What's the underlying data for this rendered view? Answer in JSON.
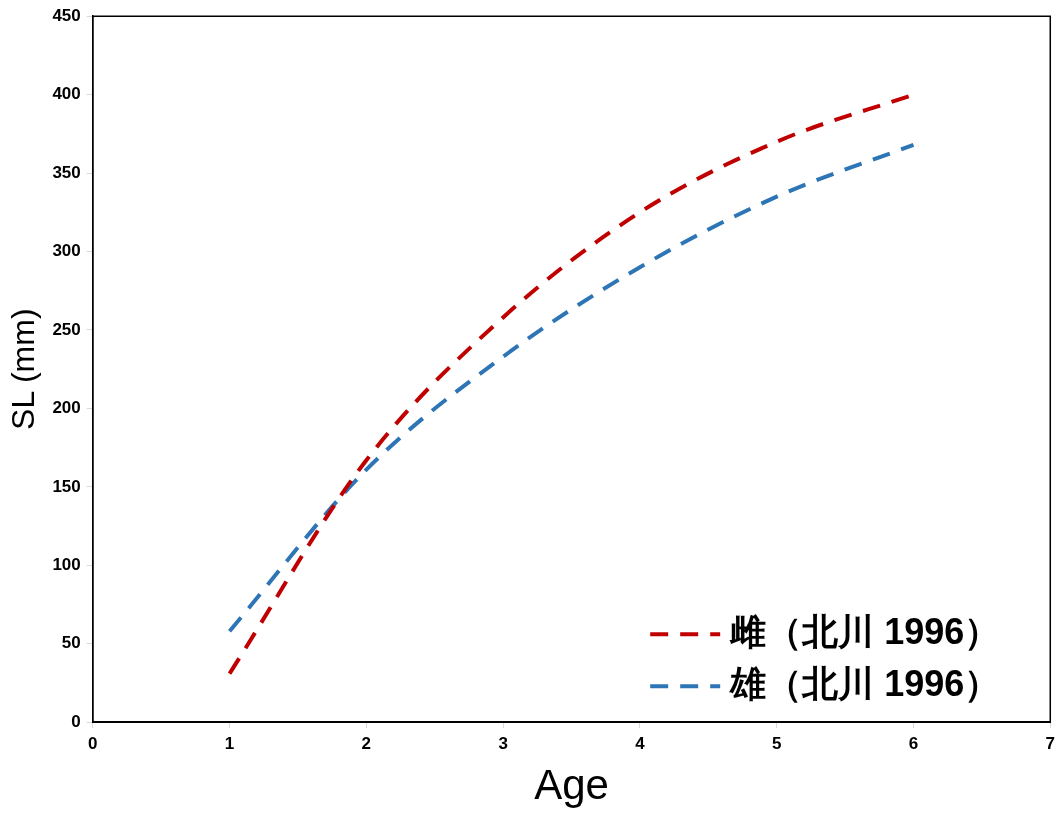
{
  "chart_data": {
    "type": "line",
    "xlabel": "Age",
    "ylabel": "SL (mm)",
    "x": [
      1,
      2,
      3,
      4,
      5,
      6
    ],
    "series": [
      {
        "name": "雌（北川 1996）",
        "color": "#c00000",
        "values": [
          31,
          167,
          258,
          325,
          370,
          400
        ]
      },
      {
        "name": "雄（北川 1996）",
        "color": "#2e75b6",
        "values": [
          58,
          161,
          233,
          290,
          335,
          368
        ]
      }
    ],
    "xlim": [
      0,
      7
    ],
    "xticks": [
      0,
      1,
      2,
      3,
      4,
      5,
      6,
      7
    ],
    "ylim": [
      0,
      450
    ],
    "yticks": [
      0,
      50,
      100,
      150,
      200,
      250,
      300,
      350,
      400,
      450
    ],
    "grid": false,
    "legend": "bottom right",
    "marker": "none",
    "line_style": "dashed"
  }
}
